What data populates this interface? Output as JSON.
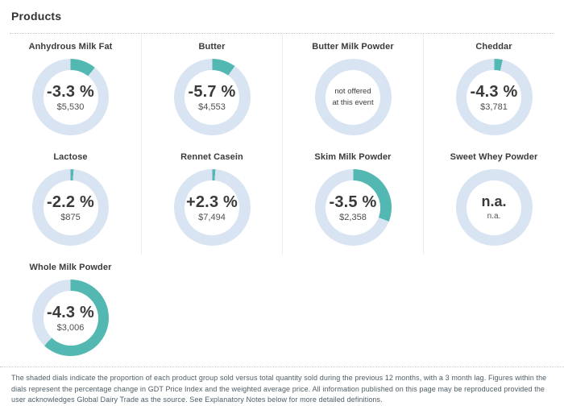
{
  "page": {
    "title": "Products"
  },
  "colors": {
    "accent_teal": "#52b8b1",
    "dial_track": "#d9e4f2",
    "text_dark": "#3a3a3a"
  },
  "products": [
    {
      "title": "Anhydrous Milk Fat",
      "change": "-3.3 %",
      "price": "$5,530",
      "dial_fill_percent": 11
    },
    {
      "title": "Butter",
      "change": "-5.7 %",
      "price": "$4,553",
      "dial_fill_percent": 10
    },
    {
      "title": "Butter Milk Powder",
      "note_line1": "not offered",
      "note_line2": "at this event",
      "dial_fill_percent": 0
    },
    {
      "title": "Cheddar",
      "change": "-4.3 %",
      "price": "$3,781",
      "dial_fill_percent": 3.5
    },
    {
      "title": "Lactose",
      "change": "-2.2 %",
      "price": "$875",
      "dial_fill_percent": 1.3
    },
    {
      "title": "Rennet Casein",
      "change": "+2.3 %",
      "price": "$7,494",
      "dial_fill_percent": 1.3
    },
    {
      "title": "Skim Milk Powder",
      "change": "-3.5 %",
      "price": "$2,358",
      "dial_fill_percent": 31
    },
    {
      "title": "Sweet Whey Powder",
      "change": "n.a.",
      "price": "n.a.",
      "dial_fill_percent": 0
    },
    {
      "title": "Whole Milk Powder",
      "change": "-4.3 %",
      "price": "$3,006",
      "dial_fill_percent": 62
    }
  ],
  "footer": {
    "text": "The shaded dials indicate the proportion of each product group sold versus total quantity sold during the previous 12 months, with a 3 month lag. Figures within the dials represent the percentage change in GDT Price Index and the weighted average price. All information published on this page may be reproduced provided the user acknowledges Global Dairy Trade as the source. See Explanatory Notes below for more detailed definitions."
  }
}
